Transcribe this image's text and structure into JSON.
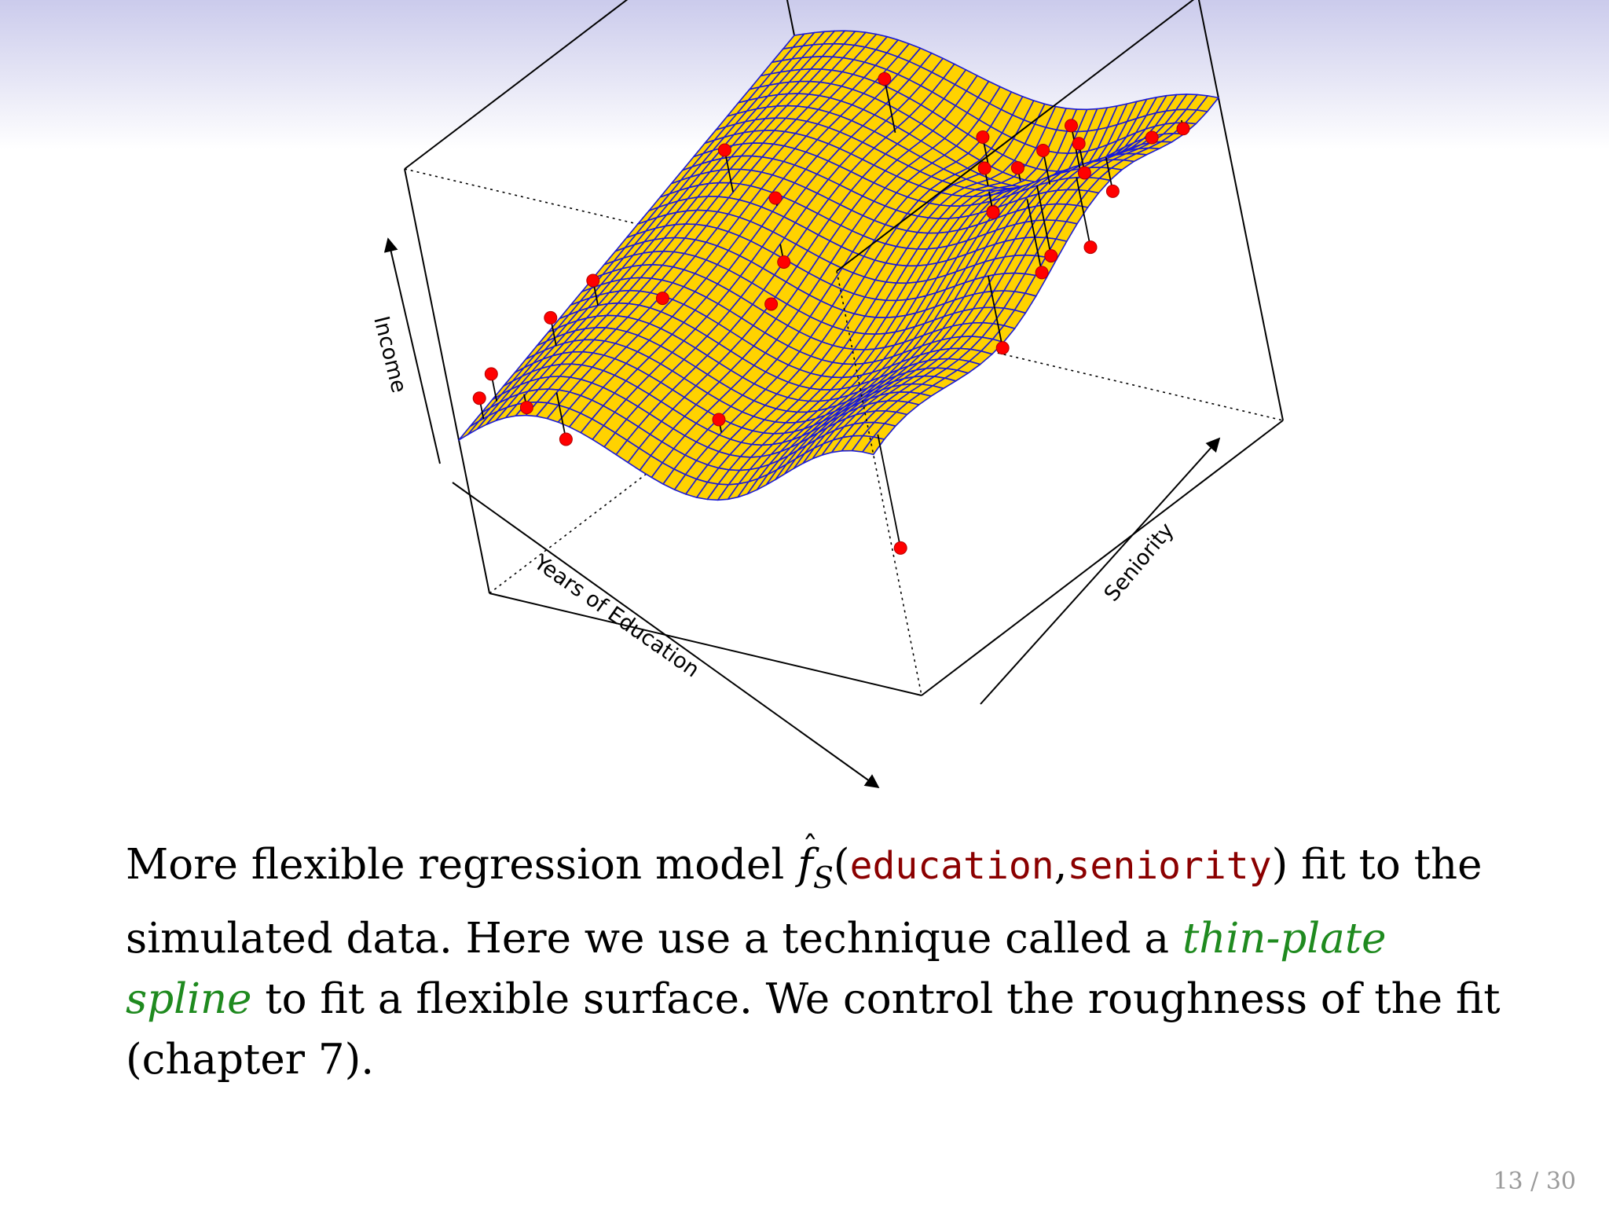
{
  "chart_data": {
    "type": "surface3d",
    "title": "",
    "xlabel": "Years of Education",
    "ylabel": "Seniority",
    "zlabel": "Income",
    "surface_color": "#ffd200",
    "grid_color": "#1a1ad6",
    "point_color": "#ff0000",
    "points": [
      {
        "x": 0.03,
        "y": 0.08,
        "z": 0.3
      },
      {
        "x": 0.04,
        "y": 0.03,
        "z": 0.26
      },
      {
        "x": 0.08,
        "y": 0.2,
        "z": 0.42
      },
      {
        "x": 0.1,
        "y": 0.3,
        "z": 0.47
      },
      {
        "x": 0.12,
        "y": 0.06,
        "z": 0.22
      },
      {
        "x": 0.2,
        "y": 0.06,
        "z": 0.12
      },
      {
        "x": 0.2,
        "y": 0.58,
        "z": 0.74
      },
      {
        "x": 0.22,
        "y": 0.34,
        "z": 0.4
      },
      {
        "x": 0.3,
        "y": 0.58,
        "z": 0.58
      },
      {
        "x": 0.35,
        "y": 0.52,
        "z": 0.4
      },
      {
        "x": 0.4,
        "y": 0.42,
        "z": 0.36
      },
      {
        "x": 0.38,
        "y": 0.82,
        "z": 0.84
      },
      {
        "x": 0.5,
        "y": 0.14,
        "z": 0.24
      },
      {
        "x": 0.55,
        "y": 0.86,
        "z": 0.62
      },
      {
        "x": 0.6,
        "y": 0.8,
        "z": 0.58
      },
      {
        "x": 0.62,
        "y": 0.86,
        "z": 0.52
      },
      {
        "x": 0.64,
        "y": 0.76,
        "z": 0.46
      },
      {
        "x": 0.68,
        "y": 0.72,
        "z": 0.52
      },
      {
        "x": 0.7,
        "y": 0.85,
        "z": 0.64
      },
      {
        "x": 0.73,
        "y": 0.9,
        "z": 0.7
      },
      {
        "x": 0.76,
        "y": 0.88,
        "z": 0.66
      },
      {
        "x": 0.8,
        "y": 0.84,
        "z": 0.6
      },
      {
        "x": 0.82,
        "y": 0.7,
        "z": 0.42
      },
      {
        "x": 0.83,
        "y": 0.66,
        "z": 0.4
      },
      {
        "x": 0.86,
        "y": 0.5,
        "z": 0.28
      },
      {
        "x": 0.88,
        "y": 0.82,
        "z": 0.58
      },
      {
        "x": 0.9,
        "y": 0.92,
        "z": 0.7
      },
      {
        "x": 0.92,
        "y": 0.7,
        "z": 0.5
      },
      {
        "x": 0.96,
        "y": 0.94,
        "z": 0.74
      },
      {
        "x": 0.98,
        "y": 0.04,
        "z": 0.02
      }
    ]
  },
  "caption": {
    "p1": "More flexible regression model ",
    "fhat": "f",
    "hat": "ˆ",
    "sub": "S",
    "open": "(",
    "code1": "education",
    "comma": ",",
    "code2": "seniority",
    "p2": ") fit to the simulated data. Here we use a technique called a ",
    "emph1": "thin-plate spline",
    "p3": " to fit a flexible surface. We control the roughness of the fit (chapter 7)."
  },
  "page_number": "13 / 30"
}
